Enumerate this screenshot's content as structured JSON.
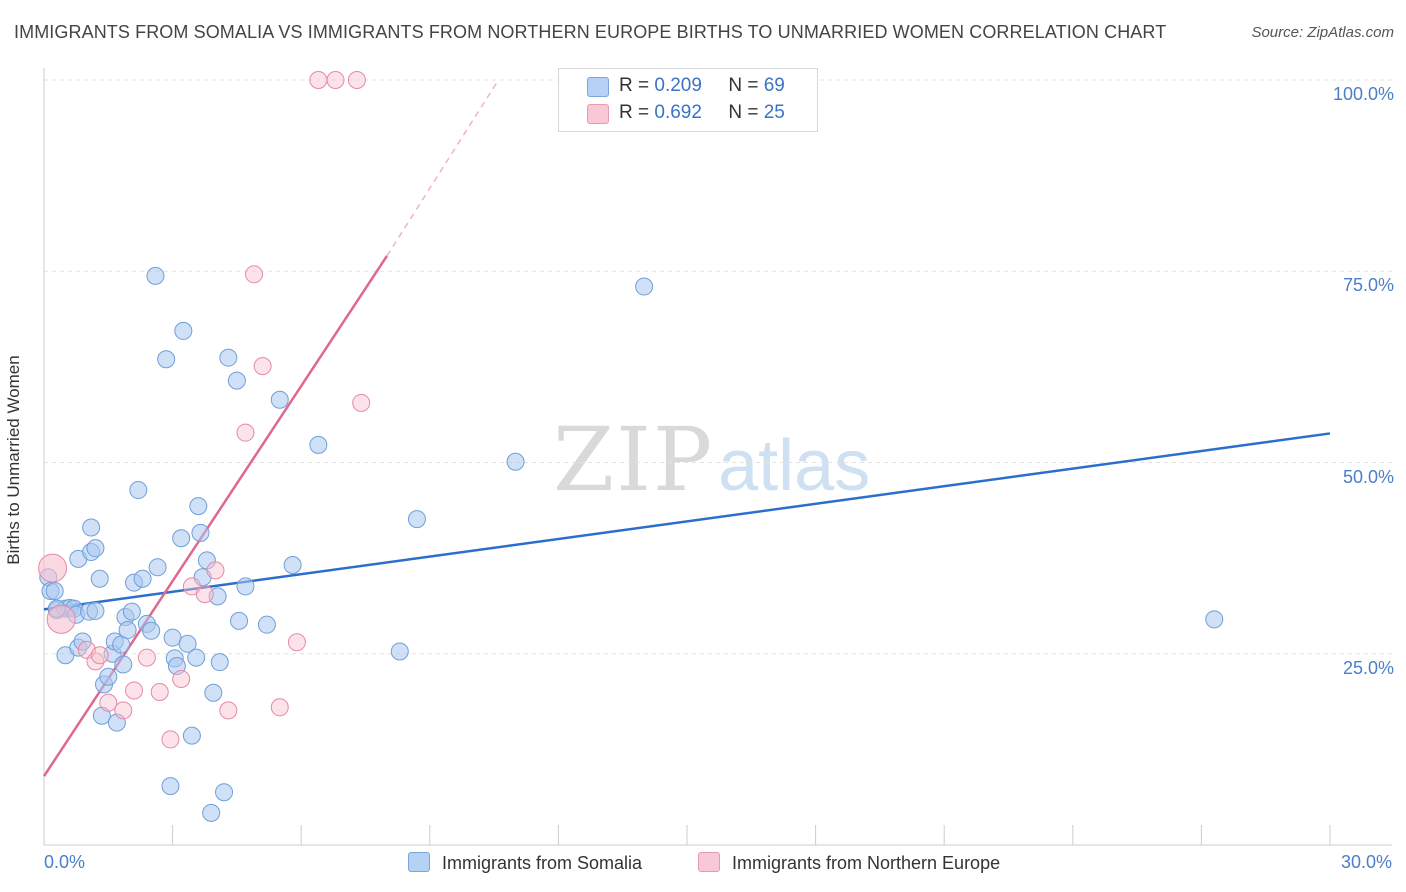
{
  "header": {
    "title": "IMMIGRANTS FROM SOMALIA VS IMMIGRANTS FROM NORTHERN EUROPE BIRTHS TO UNMARRIED WOMEN CORRELATION CHART",
    "source": "Source: ZipAtlas.com"
  },
  "watermark": {
    "zip": "ZIP",
    "atlas": "atlas"
  },
  "legend": {
    "rows": [
      {
        "r_label": "R =",
        "r_value": "0.209",
        "n_label": "N =",
        "n_value": "69"
      },
      {
        "r_label": "R =",
        "r_value": "0.692",
        "n_label": "N =",
        "n_value": "25"
      }
    ]
  },
  "colors": {
    "somalia_fill": "#a9c9f0",
    "somalia_stroke": "#6f9fd8",
    "somalia_line": "#2a6fcc",
    "northern_europe_fill": "#f7c0cf",
    "northern_europe_stroke": "#e58aa6",
    "northern_europe_line": "#e0688f"
  },
  "chart_data": {
    "type": "scatter",
    "title": "IMMIGRANTS FROM SOMALIA VS IMMIGRANTS FROM NORTHERN EUROPE BIRTHS TO UNMARRIED WOMEN CORRELATION CHART",
    "xlabel": "",
    "ylabel": "Births to Unmarried Women",
    "xlim": [
      0,
      30
    ],
    "ylim": [
      0,
      100
    ],
    "x_tick_labels": [
      "0.0%",
      "30.0%"
    ],
    "y_ticks": [
      25,
      50,
      75,
      100
    ],
    "y_tick_labels": [
      "25.0%",
      "50.0%",
      "75.0%",
      "100.0%"
    ],
    "grid": true,
    "legend_position": "top-center",
    "series": [
      {
        "name": "Immigrants from Somalia",
        "r": 0.209,
        "n": 69,
        "trend": {
          "x": [
            0,
            30
          ],
          "y": [
            30.8,
            53.8
          ]
        },
        "points": [
          [
            0.1,
            35.0
          ],
          [
            0.15,
            33.2
          ],
          [
            0.25,
            33.2
          ],
          [
            0.3,
            30.7
          ],
          [
            0.5,
            30.9
          ],
          [
            0.5,
            24.8
          ],
          [
            0.6,
            31.0
          ],
          [
            0.7,
            30.9
          ],
          [
            0.75,
            30.1
          ],
          [
            0.8,
            37.4
          ],
          [
            0.8,
            25.8
          ],
          [
            0.9,
            26.6
          ],
          [
            1.05,
            30.5
          ],
          [
            1.1,
            38.3
          ],
          [
            1.1,
            41.5
          ],
          [
            1.2,
            38.8
          ],
          [
            1.2,
            30.6
          ],
          [
            1.3,
            34.8
          ],
          [
            1.35,
            16.9
          ],
          [
            1.4,
            21.0
          ],
          [
            1.5,
            22.0
          ],
          [
            1.6,
            25.0
          ],
          [
            1.65,
            26.6
          ],
          [
            1.7,
            16.0
          ],
          [
            1.8,
            26.2
          ],
          [
            1.85,
            23.6
          ],
          [
            1.9,
            29.8
          ],
          [
            1.95,
            28.1
          ],
          [
            2.05,
            30.5
          ],
          [
            2.1,
            34.3
          ],
          [
            2.2,
            46.4
          ],
          [
            2.3,
            34.8
          ],
          [
            2.4,
            28.9
          ],
          [
            2.5,
            28.0
          ],
          [
            2.6,
            74.4
          ],
          [
            2.65,
            36.3
          ],
          [
            2.85,
            63.5
          ],
          [
            2.95,
            7.7
          ],
          [
            3.0,
            27.1
          ],
          [
            3.05,
            24.4
          ],
          [
            3.1,
            23.4
          ],
          [
            3.2,
            40.1
          ],
          [
            3.25,
            67.2
          ],
          [
            3.35,
            26.3
          ],
          [
            3.45,
            14.3
          ],
          [
            3.55,
            24.5
          ],
          [
            3.6,
            44.3
          ],
          [
            3.65,
            40.8
          ],
          [
            3.7,
            35.0
          ],
          [
            3.8,
            37.2
          ],
          [
            3.9,
            4.2
          ],
          [
            3.95,
            19.9
          ],
          [
            4.05,
            32.5
          ],
          [
            4.1,
            23.9
          ],
          [
            4.2,
            6.9
          ],
          [
            4.3,
            63.7
          ],
          [
            4.5,
            60.7
          ],
          [
            4.55,
            29.3
          ],
          [
            4.7,
            33.8
          ],
          [
            5.2,
            28.8
          ],
          [
            5.5,
            58.2
          ],
          [
            5.8,
            36.6
          ],
          [
            6.4,
            52.3
          ],
          [
            8.3,
            25.3
          ],
          [
            8.7,
            42.6
          ],
          [
            11.0,
            50.1
          ],
          [
            14.0,
            73.0
          ],
          [
            27.3,
            29.5
          ],
          [
            0.3,
            30.9
          ]
        ]
      },
      {
        "name": "Immigrants from Northern Europe",
        "r": 0.692,
        "n": 25,
        "trend": {
          "x": [
            0,
            8.0
          ],
          "y": [
            9.0,
            77.0
          ]
        },
        "trend_extension": {
          "x": [
            8.0,
            10.6
          ],
          "y": [
            77.0,
            100.0
          ]
        },
        "points": [
          [
            0.2,
            36.2
          ],
          [
            0.4,
            29.5
          ],
          [
            1.0,
            25.5
          ],
          [
            1.2,
            24.0
          ],
          [
            1.3,
            24.8
          ],
          [
            1.5,
            18.6
          ],
          [
            1.85,
            17.6
          ],
          [
            2.1,
            20.2
          ],
          [
            2.4,
            24.5
          ],
          [
            2.7,
            20.0
          ],
          [
            2.95,
            13.8
          ],
          [
            3.2,
            21.7
          ],
          [
            3.45,
            33.8
          ],
          [
            3.75,
            32.8
          ],
          [
            4.0,
            35.9
          ],
          [
            4.3,
            17.6
          ],
          [
            4.7,
            53.9
          ],
          [
            4.9,
            74.6
          ],
          [
            5.1,
            62.6
          ],
          [
            5.5,
            18.0
          ],
          [
            5.9,
            26.5
          ],
          [
            6.4,
            100.0
          ],
          [
            6.8,
            100.0
          ],
          [
            7.3,
            100.0
          ],
          [
            7.4,
            57.8
          ]
        ]
      }
    ]
  }
}
